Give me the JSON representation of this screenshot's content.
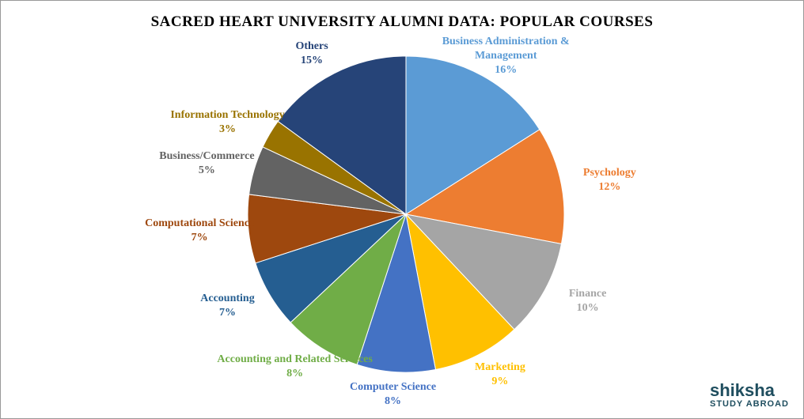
{
  "chart_data": {
    "type": "pie",
    "title": "SACRED HEART UNIVERSITY ALUMNI DATA: POPULAR COURSES",
    "categories": [
      "Business Administration & Management",
      "Psychology",
      "Finance",
      "Marketing",
      "Computer Science",
      "Accounting and Related Services",
      "Accounting",
      "Computational Science",
      "Business/Commerce",
      "Information Technology",
      "Others"
    ],
    "values": [
      16,
      12,
      10,
      9,
      8,
      8,
      7,
      7,
      5,
      3,
      15
    ],
    "value_labels": [
      "16%",
      "12%",
      "10%",
      "9%",
      "8%",
      "8%",
      "7%",
      "7%",
      "5%",
      "3%",
      "15%"
    ],
    "colors": [
      "#5b9bd5",
      "#ed7d31",
      "#a5a5a5",
      "#ffc000",
      "#4472c4",
      "#70ad47",
      "#255e91",
      "#9e480e",
      "#636363",
      "#997300",
      "#264478"
    ]
  },
  "logo": {
    "name": "shiksha",
    "tagline": "STUDY ABROAD"
  }
}
